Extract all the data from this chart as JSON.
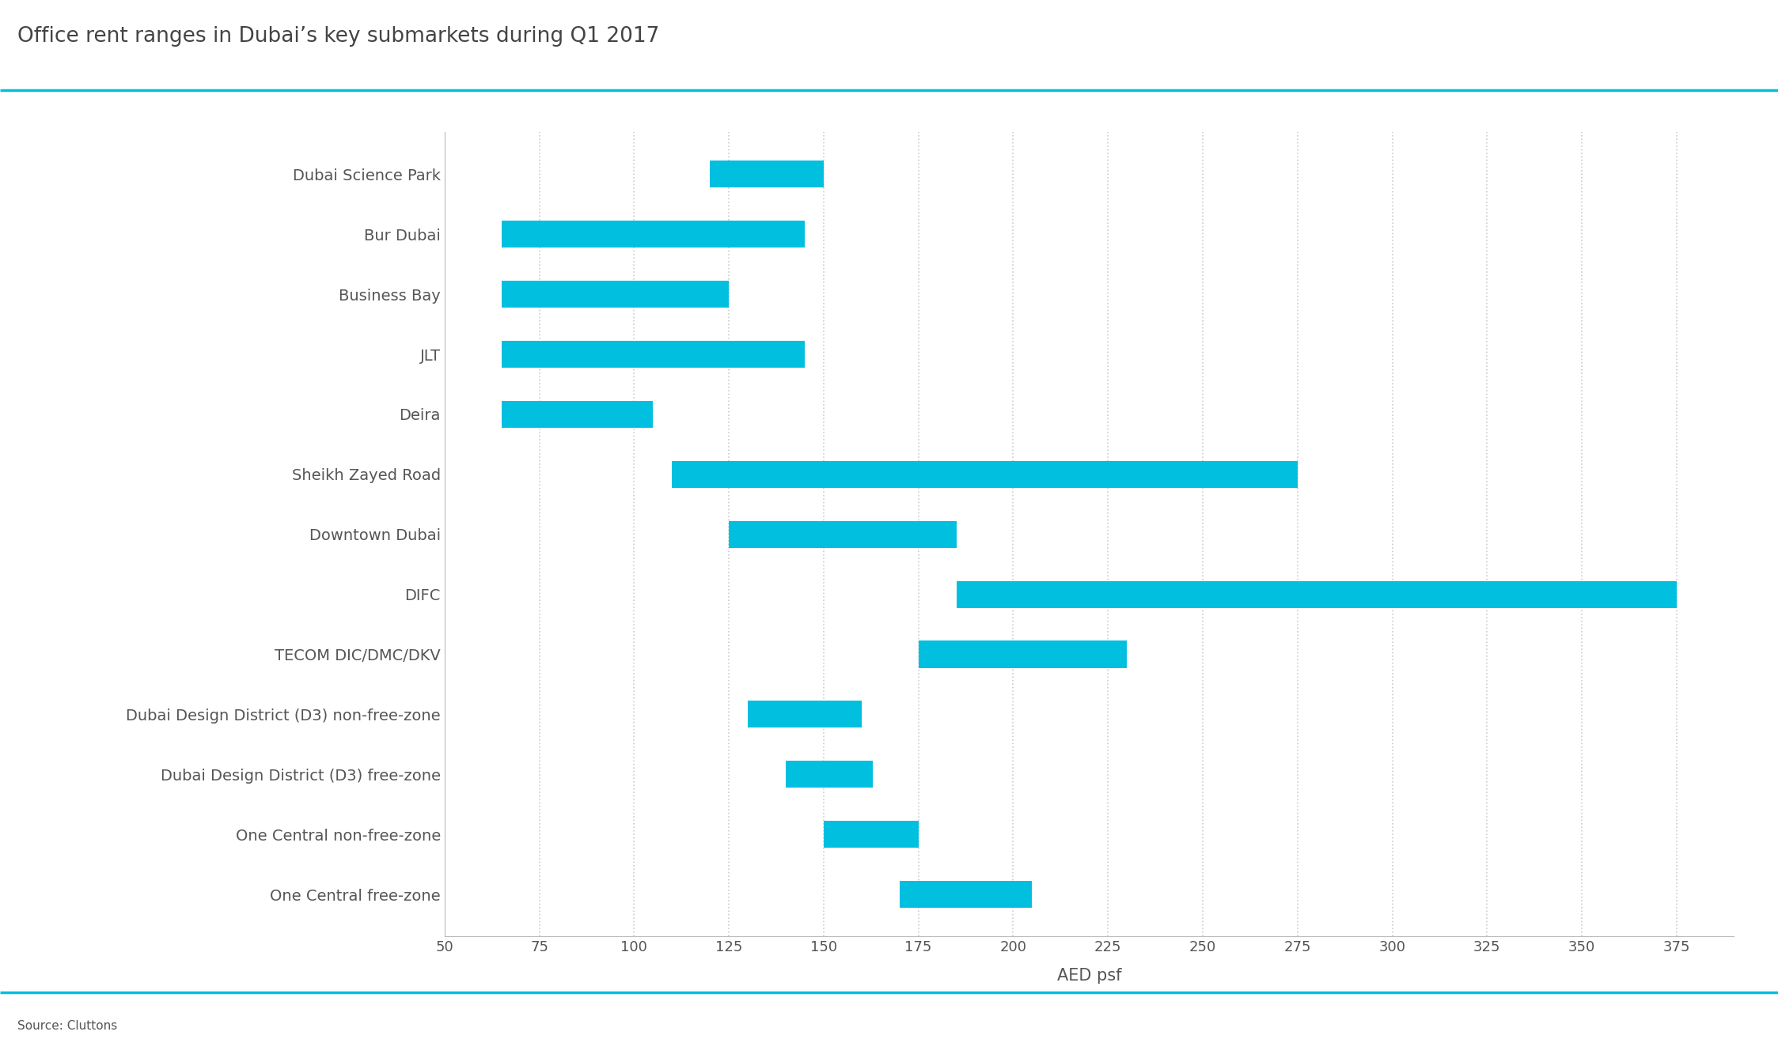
{
  "title": "Office rent ranges in Dubai’s key submarkets during Q1 2017",
  "xlabel": "AED psf",
  "bar_color": "#00BFDF",
  "background_color": "#ffffff",
  "categories": [
    "Dubai Science Park",
    "Bur Dubai",
    "Business Bay",
    "JLT",
    "Deira",
    "Sheikh Zayed Road",
    "Downtown Dubai",
    "DIFC",
    "TECOM DIC/DMC/DKV",
    "Dubai Design District (D3) non-free-zone",
    "Dubai Design District (D3) free-zone",
    "One Central non-free-zone",
    "One Central free-zone"
  ],
  "bar_starts": [
    120,
    65,
    65,
    65,
    65,
    110,
    125,
    185,
    175,
    130,
    140,
    150,
    170
  ],
  "bar_ends": [
    150,
    145,
    125,
    145,
    105,
    275,
    185,
    375,
    230,
    160,
    163,
    175,
    205
  ],
  "xlim": [
    50,
    390
  ],
  "xticks": [
    50,
    75,
    100,
    125,
    150,
    175,
    200,
    225,
    250,
    275,
    300,
    325,
    350,
    375
  ],
  "title_color": "#444444",
  "axis_color": "#bbbbbb",
  "tick_color": "#555555",
  "grid_color": "#cccccc",
  "bar_height": 0.45,
  "title_fontsize": 19,
  "label_fontsize": 14,
  "tick_fontsize": 13,
  "source_text": "Source: Cluttons",
  "top_line_color": "#00BFDF",
  "bottom_line_color": "#00BFDF"
}
